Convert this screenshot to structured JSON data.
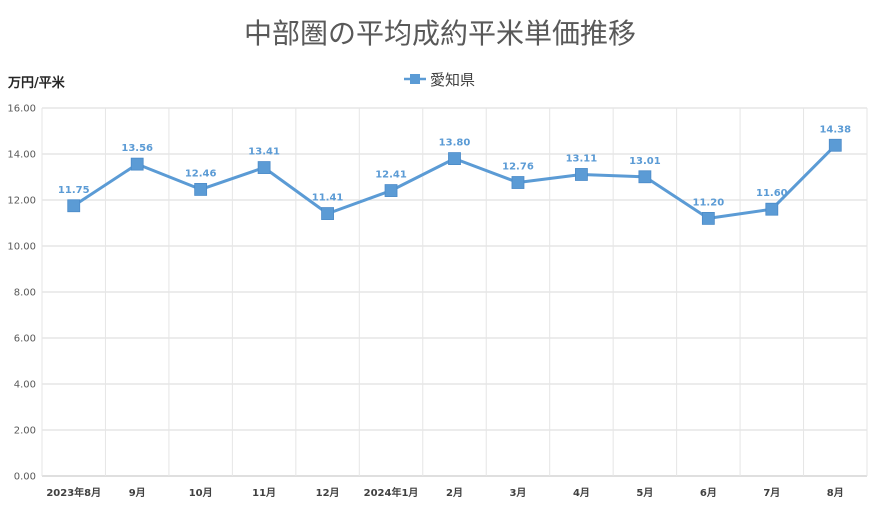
{
  "chart_data": {
    "type": "line",
    "title": "中部圏の平均成約平米単価推移",
    "ylabel": "万円/平米",
    "xlabel": "",
    "categories": [
      "2023年8月",
      "9月",
      "10月",
      "11月",
      "12月",
      "2024年1月",
      "2月",
      "3月",
      "4月",
      "5月",
      "6月",
      "7月",
      "8月"
    ],
    "series": [
      {
        "name": "愛知県",
        "values": [
          11.75,
          13.56,
          12.46,
          13.41,
          11.41,
          12.41,
          13.8,
          12.76,
          13.11,
          13.01,
          11.2,
          11.6,
          14.38
        ],
        "labels": [
          "11.75",
          "13.56",
          "12.46",
          "13.41",
          "11.41",
          "12.41",
          "13.80",
          "12.76",
          "13.11",
          "13.01",
          "11.20",
          "11.60",
          "14.38"
        ],
        "color": "#5b9bd5",
        "label_color": "#5b9bd5"
      }
    ],
    "ylim": [
      0,
      16
    ],
    "yticks": [
      "0.00",
      "2.00",
      "4.00",
      "6.00",
      "8.00",
      "10.00",
      "12.00",
      "14.00",
      "16.00"
    ],
    "grid": true,
    "legend": "top-center"
  }
}
